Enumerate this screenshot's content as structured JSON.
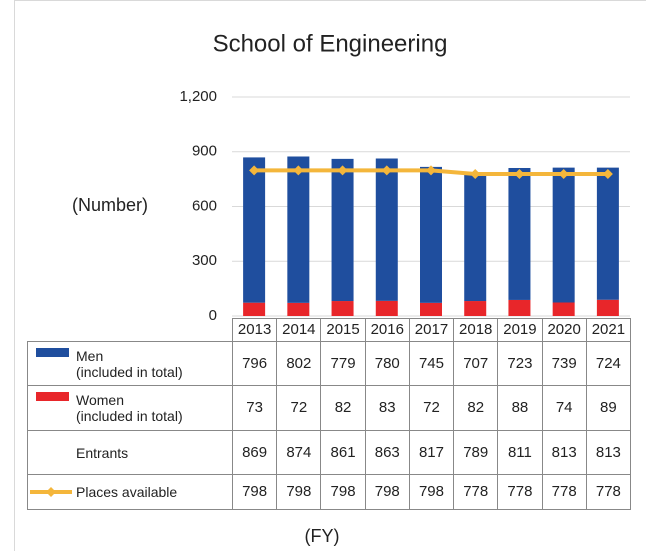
{
  "chart_data": {
    "type": "bar",
    "stacked": true,
    "title": "School of Engineering",
    "y_label": "(Number)",
    "x_label": "(FY)",
    "categories": [
      "2013",
      "2014",
      "2015",
      "2016",
      "2017",
      "2018",
      "2019",
      "2020",
      "2021"
    ],
    "ylim": [
      0,
      1200
    ],
    "yticks": [
      0,
      300,
      600,
      900,
      {
        "value": 1200,
        "label": "1,200"
      }
    ],
    "grid": true,
    "series": [
      {
        "name": "Men\n(included in total)",
        "type": "bar",
        "color": "#1f4e9e",
        "values": [
          796,
          802,
          779,
          780,
          745,
          707,
          723,
          739,
          724
        ]
      },
      {
        "name": "Women\n(included in total)",
        "type": "bar",
        "color": "#e8262a",
        "values": [
          73,
          72,
          82,
          83,
          72,
          82,
          88,
          74,
          89
        ]
      },
      {
        "name": "Entrants",
        "type": "table",
        "values": [
          869,
          874,
          861,
          863,
          817,
          789,
          811,
          813,
          813
        ]
      },
      {
        "name": "Places available",
        "type": "line",
        "color": "#f4b63b",
        "values": [
          798,
          798,
          798,
          798,
          798,
          778,
          778,
          778,
          778
        ]
      }
    ]
  }
}
